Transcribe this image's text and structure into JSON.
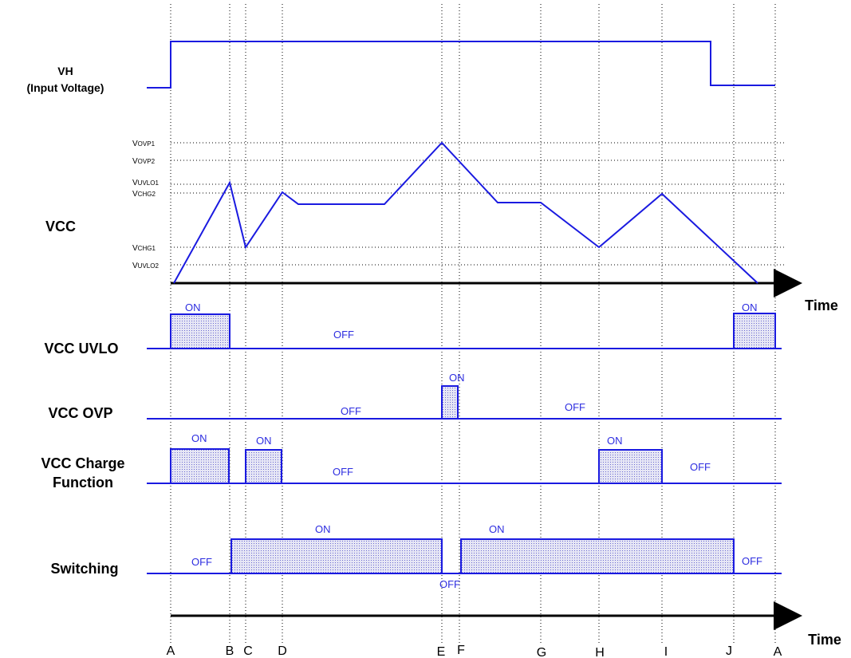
{
  "signals": {
    "vh": {
      "line1": "VH",
      "line2": "(Input Voltage)"
    },
    "vcc": "VCC",
    "uvlo": "VCC UVLO",
    "ovp": "VCC OVP",
    "charge": {
      "line1": "VCC Charge",
      "line2": "Function"
    },
    "switching": "Switching"
  },
  "thresholds": {
    "vovp1": {
      "main": "V",
      "sub": "OVP1"
    },
    "vovp2": {
      "main": "V",
      "sub": "OVP2"
    },
    "vuvlo1": {
      "main": "V",
      "sub": "UVLO1"
    },
    "vchg2": {
      "main": "V",
      "sub": "CHG2"
    },
    "vchg1": {
      "main": "V",
      "sub": "CHG1"
    },
    "vuvlo2": {
      "main": "V",
      "sub": "UVLO2"
    }
  },
  "time_label": "Time",
  "states": {
    "on": "ON",
    "off": "OFF"
  },
  "points": [
    "A",
    "B",
    "C",
    "D",
    "E",
    "F",
    "G",
    "H",
    "I",
    "J",
    "A"
  ],
  "colors": {
    "signal": "#1a1ae0",
    "text_state": "#2d2de0"
  }
}
